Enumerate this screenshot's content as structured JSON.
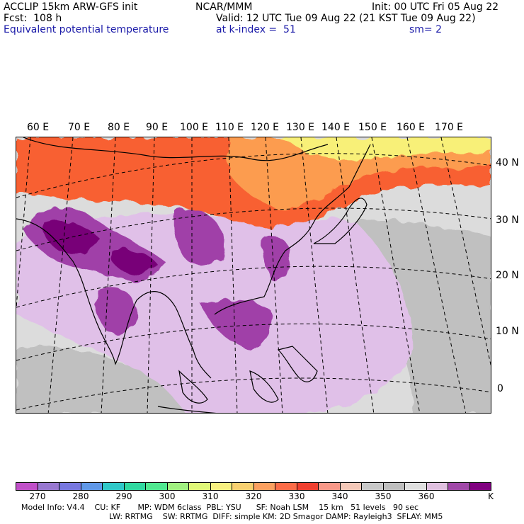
{
  "header": {
    "line1_left": "ACCLIP 15km ARW-GFS init",
    "line1_mid": "NCAR/MMM",
    "line1_right": "Init: 00 UTC Fri 05 Aug 22",
    "line2_left": "Fcst:  108 h",
    "line2_right": "Valid: 12 UTC Tue 09 Aug 22 (21 KST Tue 09 Aug 22)",
    "line3_left": "Equivalent potential temperature",
    "line3_mid": "at k-index =  51",
    "line3_right": "sm= 2"
  },
  "map": {
    "lon_labels": [
      "60 E",
      "70 E",
      "80 E",
      "90 E",
      "100 E",
      "110 E",
      "120 E",
      "130 E",
      "140 E",
      "150 E",
      "160 E",
      "170 E"
    ],
    "lat_labels": [
      "40 N",
      "30 N",
      "20 N",
      "10 N",
      "0"
    ],
    "colors": {
      "land_background": "#dcdcdc",
      "warm_band": "#f86030",
      "orange_band": "#fc9c50",
      "yellow_band": "#f8f078",
      "lilac": "#e0c0e8",
      "purple": "#a040a8",
      "deep_purple": "#780078",
      "grey": "#c0c0c0",
      "coastline": "#000000",
      "gridline": "#000000"
    }
  },
  "colorbar": {
    "colors": [
      "#c050c8",
      "#9878d0",
      "#7878e0",
      "#6098e8",
      "#30c8c8",
      "#30d8a0",
      "#50e890",
      "#a0f080",
      "#e0f878",
      "#f8f080",
      "#f8d070",
      "#fca060",
      "#fc6c48",
      "#f04030",
      "#f89888",
      "#f4c8b8",
      "#c8c8c8",
      "#bebebe",
      "#e0e0e0",
      "#e0c0e0",
      "#a048a8",
      "#800080"
    ],
    "tick_labels": [
      "270",
      "280",
      "290",
      "300",
      "310",
      "320",
      "330",
      "340",
      "350",
      "360",
      "K"
    ]
  },
  "model_info": {
    "line1": "Model Info: V4.4    CU: KF       MP: WDM 6class  PBL: YSU      SF: Noah LSM    15 km   51 levels   90 sec",
    "line2": "LW: RRTMG    SW: RRTMG  DIFF: simple KM: 2D Smagor DAMP: Rayleigh3  SFLAY: MM5"
  }
}
